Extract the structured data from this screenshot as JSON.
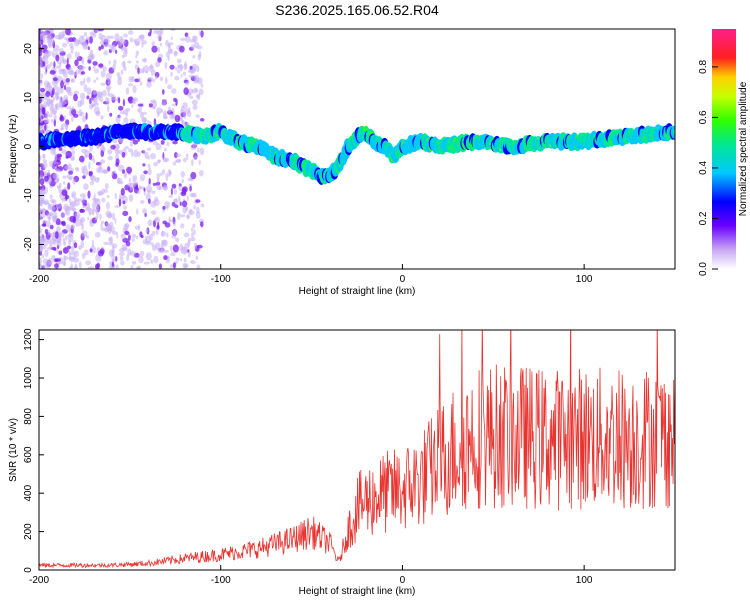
{
  "title": "S236.2025.165.06.52.R04",
  "chart_data": [
    {
      "type": "heatmap",
      "xlabel": "Height of straight line (km)",
      "ylabel": "Frequency (Hz)",
      "xlim": [
        -200,
        150
      ],
      "ylim": [
        -25,
        24
      ],
      "xticks": [
        "-200",
        "-100",
        "0",
        "100"
      ],
      "xtick_values": [
        -200,
        -100,
        0,
        100
      ],
      "yticks": [
        "-20",
        "-10",
        "0",
        "10",
        "20"
      ],
      "ytick_values": [
        -20,
        -10,
        0,
        10,
        20
      ],
      "colorbar": {
        "label": "Normalized spectral amplitude",
        "ticks": [
          "0.0",
          "0.2",
          "0.4",
          "0.6",
          "0.8"
        ],
        "tick_values": [
          0.0,
          0.2,
          0.4,
          0.6,
          0.8
        ],
        "range": [
          0,
          0.95
        ]
      },
      "ridge": {
        "x": [
          -200,
          -170,
          -155,
          -140,
          -125,
          -110,
          -100,
          -90,
          -80,
          -70,
          -60,
          -50,
          -45,
          -40,
          -35,
          -30,
          -25,
          -20,
          -15,
          -10,
          -5,
          0,
          10,
          20,
          40,
          60,
          80,
          100,
          120,
          150
        ],
        "y": [
          1,
          2,
          3,
          3,
          3,
          2,
          3,
          1,
          0,
          -2,
          -3,
          -5,
          -6,
          -6,
          -4,
          0,
          2,
          3,
          1,
          0,
          -2,
          0,
          1,
          0,
          1,
          0,
          1,
          1,
          2,
          3
        ]
      }
    },
    {
      "type": "line",
      "xlabel": "Height of straight line (km)",
      "ylabel": "SNR (10 * v/v)",
      "xlim": [
        -200,
        150
      ],
      "ylim": [
        0,
        1250
      ],
      "xticks": [
        "-200",
        "-100",
        "0",
        "100"
      ],
      "xtick_values": [
        -200,
        -100,
        0,
        100
      ],
      "yticks": [
        "0",
        "200",
        "400",
        "600",
        "800",
        "1000",
        "1200"
      ],
      "ytick_values": [
        0,
        200,
        400,
        600,
        800,
        1000,
        1200
      ],
      "series_color": "#e8332f",
      "trend": {
        "x": [
          -200,
          -160,
          -140,
          -120,
          -100,
          -80,
          -60,
          -50,
          -40,
          -35,
          -30,
          -25,
          -20,
          -15,
          -10,
          0,
          10,
          20,
          30,
          40,
          60,
          80,
          100,
          120,
          150
        ],
        "y": [
          25,
          25,
          35,
          60,
          80,
          110,
          160,
          200,
          140,
          40,
          200,
          320,
          360,
          380,
          400,
          420,
          470,
          560,
          640,
          700,
          700,
          680,
          690,
          680,
          700
        ]
      }
    }
  ]
}
